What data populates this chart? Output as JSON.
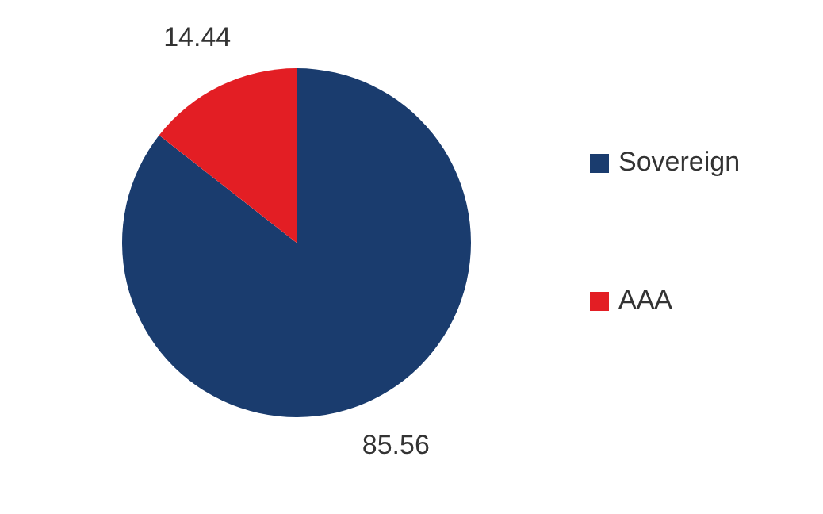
{
  "chart_data": {
    "type": "pie",
    "categories": [
      "Sovereign",
      "AAA"
    ],
    "values": [
      85.56,
      14.44
    ],
    "colors": [
      "#1a3c6e",
      "#e31e24"
    ],
    "data_labels": true,
    "legend": "right"
  }
}
